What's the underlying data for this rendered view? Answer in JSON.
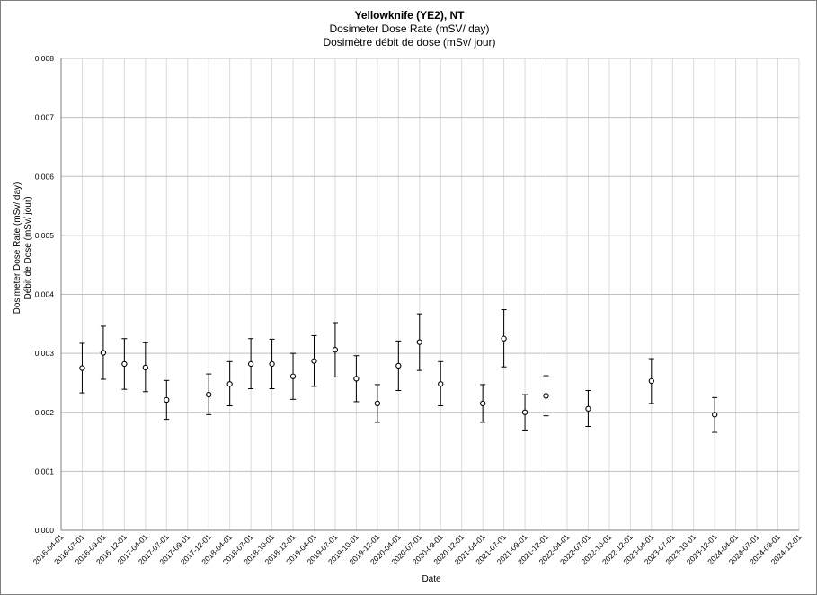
{
  "chart_data": {
    "type": "scatter",
    "title": "Yellowknife (YE2), NT",
    "subtitle": "Dosimeter Dose Rate (mSV/ day)",
    "subtitle_fr": "Dosimètre débit de dose (mSv/ jour)",
    "xlabel": "Date",
    "ylabel": "Dosimeter Dose Rate (mSv/ day)",
    "ylabel_fr": "Débit de Dose (mSv/ jour)",
    "ylim": [
      0,
      0.008
    ],
    "yticks": [
      "0.000",
      "0.001",
      "0.002",
      "0.003",
      "0.004",
      "0.005",
      "0.006",
      "0.007",
      "0.008"
    ],
    "xticks": [
      "2016-04-01",
      "2016-07-01",
      "2016-09-01",
      "2016-12-01",
      "2017-04-01",
      "2017-07-01",
      "2017-09-01",
      "2017-12-01",
      "2018-04-01",
      "2018-07-01",
      "2018-10-01",
      "2018-12-01",
      "2019-04-01",
      "2019-07-01",
      "2019-10-01",
      "2019-12-01",
      "2020-04-01",
      "2020-07-01",
      "2020-09-01",
      "2020-12-01",
      "2021-04-01",
      "2021-07-01",
      "2021-09-01",
      "2021-12-01",
      "2022-04-01",
      "2022-07-01",
      "2022-10-01",
      "2022-12-01",
      "2023-04-01",
      "2023-07-01",
      "2023-10-01",
      "2023-12-01",
      "2024-04-01",
      "2024-07-01",
      "2024-09-01",
      "2024-12-01"
    ],
    "grid": true,
    "error_bars": true,
    "points": [
      {
        "x": "2016-07-01",
        "y": 0.00275,
        "low": 0.00233,
        "high": 0.00317
      },
      {
        "x": "2016-09-01",
        "y": 0.00301,
        "low": 0.00256,
        "high": 0.00346
      },
      {
        "x": "2016-12-01",
        "y": 0.00282,
        "low": 0.00239,
        "high": 0.00325
      },
      {
        "x": "2017-04-01",
        "y": 0.00276,
        "low": 0.00235,
        "high": 0.00318
      },
      {
        "x": "2017-07-01",
        "y": 0.00221,
        "low": 0.00188,
        "high": 0.00254
      },
      {
        "x": "2017-12-01",
        "y": 0.0023,
        "low": 0.00196,
        "high": 0.00265
      },
      {
        "x": "2018-04-01",
        "y": 0.00248,
        "low": 0.00211,
        "high": 0.00286
      },
      {
        "x": "2018-07-01",
        "y": 0.00282,
        "low": 0.0024,
        "high": 0.00325
      },
      {
        "x": "2018-10-01",
        "y": 0.00282,
        "low": 0.0024,
        "high": 0.00324
      },
      {
        "x": "2018-12-01",
        "y": 0.00261,
        "low": 0.00222,
        "high": 0.003
      },
      {
        "x": "2019-04-01",
        "y": 0.00287,
        "low": 0.00244,
        "high": 0.0033
      },
      {
        "x": "2019-07-01",
        "y": 0.00306,
        "low": 0.0026,
        "high": 0.00352
      },
      {
        "x": "2019-10-01",
        "y": 0.00257,
        "low": 0.00218,
        "high": 0.00296
      },
      {
        "x": "2019-12-01",
        "y": 0.00215,
        "low": 0.00183,
        "high": 0.00247
      },
      {
        "x": "2020-04-01",
        "y": 0.00279,
        "low": 0.00237,
        "high": 0.00321
      },
      {
        "x": "2020-07-01",
        "y": 0.00319,
        "low": 0.00271,
        "high": 0.00367
      },
      {
        "x": "2020-09-01",
        "y": 0.00248,
        "low": 0.00211,
        "high": 0.00286
      },
      {
        "x": "2021-04-01",
        "y": 0.00215,
        "low": 0.00183,
        "high": 0.00247
      },
      {
        "x": "2021-07-01",
        "y": 0.00325,
        "low": 0.00277,
        "high": 0.00374
      },
      {
        "x": "2021-09-01",
        "y": 0.002,
        "low": 0.0017,
        "high": 0.0023
      },
      {
        "x": "2021-12-01",
        "y": 0.00228,
        "low": 0.00194,
        "high": 0.00262
      },
      {
        "x": "2022-07-01",
        "y": 0.00206,
        "low": 0.00176,
        "high": 0.00237
      },
      {
        "x": "2023-04-01",
        "y": 0.00253,
        "low": 0.00215,
        "high": 0.00291
      },
      {
        "x": "2023-12-01",
        "y": 0.00196,
        "low": 0.00166,
        "high": 0.00225
      }
    ],
    "colors": {
      "marker_stroke": "#000000",
      "marker_fill": "#ffffff",
      "grid": "#bfbfbf",
      "grid_x": "#d9d9d9",
      "axis": "#7f7f7f"
    }
  }
}
